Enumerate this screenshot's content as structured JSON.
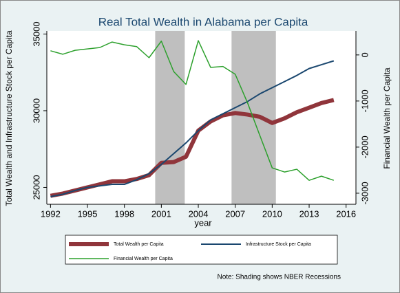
{
  "chart_data": {
    "type": "line",
    "title": "Real Total Wealth in Alabama per Capita",
    "x_label": "year",
    "y_label": "Total Wealth and Infrastructure Stock per Capita",
    "y2_label": "Financial Wealth per Capita",
    "note": "Note: Shading shows NBER Recessions",
    "x": [
      1992,
      1993,
      1994,
      1995,
      1996,
      1997,
      1998,
      1999,
      2000,
      2001,
      2002,
      2003,
      2004,
      2005,
      2006,
      2007,
      2008,
      2009,
      2010,
      2011,
      2012,
      2013,
      2014,
      2015
    ],
    "series": [
      {
        "name": "Total Wealth per Capita",
        "color": "#90353b",
        "values": [
          24450,
          24600,
          24800,
          25000,
          25200,
          25400,
          25400,
          25550,
          25800,
          26600,
          26650,
          27000,
          28700,
          29300,
          29700,
          29850,
          29750,
          29600,
          29200,
          29500,
          29900,
          30200,
          30500,
          30700
        ]
      },
      {
        "name": "Infrastructure Stock per Capita",
        "color": "#1a476f",
        "values": [
          24400,
          24550,
          24800,
          25000,
          25100,
          25200,
          25200,
          25500,
          25900,
          26500,
          27200,
          27900,
          28700,
          29400,
          29800,
          30200,
          30600,
          31100,
          31500,
          31900,
          32300,
          32750,
          33000,
          33250
        ]
      },
      {
        "name": "Financial Wealth per Capita",
        "color": "#2ca02c",
        "axis": "y2",
        "values": [
          90,
          15,
          100,
          130,
          160,
          280,
          220,
          180,
          -60,
          300,
          -360,
          -640,
          310,
          -270,
          -250,
          -420,
          -1040,
          -1750,
          -2450,
          -2540,
          -2480,
          -2720,
          -2630,
          -2720
        ]
      }
    ],
    "recessions": [
      [
        2000.5,
        2002.9
      ],
      [
        2006.7,
        2010.3
      ]
    ],
    "xlim": [
      1991.7,
      2016.8
    ],
    "xticks": [
      1992,
      1995,
      1998,
      2001,
      2004,
      2007,
      2010,
      2013,
      2016
    ],
    "ylim": [
      23900,
      35200
    ],
    "yticks": [
      25000,
      30000,
      35000
    ],
    "y2lim": [
      -3240,
      520
    ],
    "y2ticks": [
      -3000,
      -2000,
      -1000,
      0
    ]
  }
}
